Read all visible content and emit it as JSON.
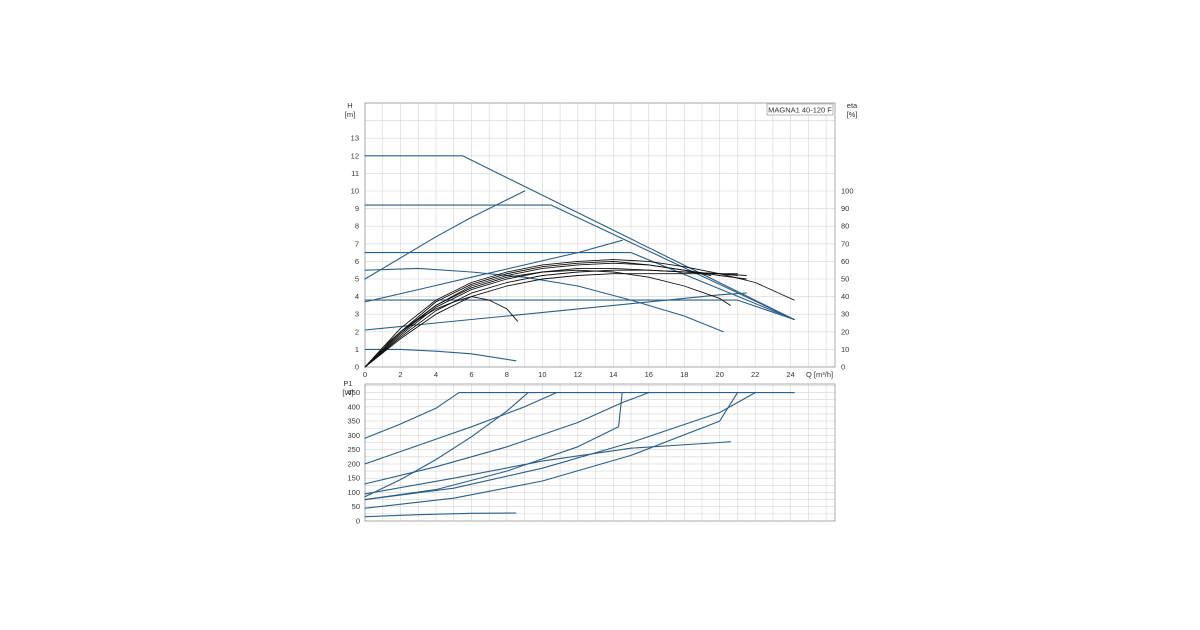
{
  "chart_data": [
    {
      "type": "line",
      "title": "",
      "model_label": "MAGNA1 40-120 F",
      "xlabel": "Q [m³/h]",
      "ylabel_left": [
        "H",
        "[m]"
      ],
      "ylabel_right": [
        "eta",
        "[%]"
      ],
      "xlim": [
        0,
        26.5
      ],
      "ylim": [
        0,
        15
      ],
      "xticks": [
        "0",
        "2",
        "4",
        "6",
        "8",
        "10",
        "12",
        "14",
        "16",
        "18",
        "20",
        "22",
        "24"
      ],
      "yticks": [
        "0",
        "1",
        "2",
        "3",
        "4",
        "5",
        "6",
        "7",
        "8",
        "9",
        "10",
        "11",
        "12",
        "13"
      ],
      "yticks_right": [
        "0",
        "10",
        "20",
        "30",
        "40",
        "50",
        "60",
        "70",
        "80",
        "90",
        "100"
      ],
      "grid": true,
      "head_series": [
        {
          "points": [
            [
              0,
              12
            ],
            [
              5.5,
              12
            ],
            [
              24.2,
              2.7
            ]
          ]
        },
        {
          "points": [
            [
              0,
              9.2
            ],
            [
              10.5,
              9.2
            ],
            [
              24.2,
              2.7
            ]
          ]
        },
        {
          "points": [
            [
              0,
              6.5
            ],
            [
              15,
              6.5
            ],
            [
              24.2,
              2.7
            ]
          ]
        },
        {
          "points": [
            [
              0,
              3.8
            ],
            [
              21,
              3.8
            ],
            [
              24.2,
              2.7
            ]
          ]
        },
        {
          "points": [
            [
              0,
              5.0
            ],
            [
              2,
              6.2
            ],
            [
              4,
              7.4
            ],
            [
              6,
              8.5
            ],
            [
              8,
              9.5
            ],
            [
              9,
              10.0
            ]
          ]
        },
        {
          "points": [
            [
              0,
              3.7
            ],
            [
              3,
              4.4
            ],
            [
              6,
              5.1
            ],
            [
              9,
              5.8
            ],
            [
              12,
              6.5
            ],
            [
              14.5,
              7.2
            ]
          ]
        },
        {
          "points": [
            [
              0,
              2.1
            ],
            [
              4,
              2.5
            ],
            [
              8,
              2.9
            ],
            [
              12,
              3.3
            ],
            [
              16,
              3.7
            ],
            [
              20,
              4.1
            ],
            [
              21.5,
              4.2
            ]
          ]
        },
        {
          "points": [
            [
              0,
              5.5
            ],
            [
              3,
              5.6
            ],
            [
              6,
              5.4
            ],
            [
              9,
              5.1
            ],
            [
              12,
              4.6
            ],
            [
              15,
              3.8
            ],
            [
              18,
              2.9
            ],
            [
              20.2,
              2.0
            ]
          ]
        },
        {
          "points": [
            [
              0,
              1.0
            ],
            [
              2,
              1.0
            ],
            [
              4,
              0.9
            ],
            [
              6,
              0.75
            ],
            [
              8.5,
              0.35
            ]
          ]
        }
      ],
      "efficiency_series": [
        {
          "points": [
            [
              0,
              0
            ],
            [
              1,
              11
            ],
            [
              2,
              20
            ],
            [
              3,
              27
            ],
            [
              4,
              33
            ],
            [
              5,
              37
            ],
            [
              6,
              40
            ],
            [
              7,
              38
            ],
            [
              8,
              33
            ],
            [
              8.6,
              26
            ]
          ]
        },
        {
          "points": [
            [
              0,
              0
            ],
            [
              2,
              20
            ],
            [
              4,
              35
            ],
            [
              6,
              45
            ],
            [
              8,
              51
            ],
            [
              10,
              54
            ],
            [
              12,
              55
            ],
            [
              14,
              54
            ],
            [
              16,
              51
            ],
            [
              18,
              46
            ],
            [
              20,
              39
            ],
            [
              20.6,
              35
            ]
          ]
        },
        {
          "points": [
            [
              0,
              0
            ],
            [
              2,
              22
            ],
            [
              4,
              38
            ],
            [
              6,
              48
            ],
            [
              8,
              54
            ],
            [
              10,
              58
            ],
            [
              12,
              60
            ],
            [
              14,
              61
            ],
            [
              16,
              60
            ],
            [
              18,
              57
            ],
            [
              20,
              53
            ],
            [
              22,
              48
            ],
            [
              24.2,
              38
            ]
          ]
        },
        {
          "points": [
            [
              0,
              0
            ],
            [
              2,
              20
            ],
            [
              4,
              37
            ],
            [
              6,
              47
            ],
            [
              8,
              53
            ],
            [
              10,
              57
            ],
            [
              12,
              59
            ],
            [
              14,
              60
            ],
            [
              16,
              58
            ],
            [
              18,
              55
            ],
            [
              20,
              52
            ],
            [
              21.5,
              50
            ]
          ]
        },
        {
          "points": [
            [
              0,
              0
            ],
            [
              2,
              18
            ],
            [
              4,
              34
            ],
            [
              6,
              44
            ],
            [
              8,
              50
            ],
            [
              10,
              54
            ],
            [
              12,
              56
            ],
            [
              14,
              56
            ],
            [
              16,
              55
            ],
            [
              18,
              54
            ],
            [
              20,
              53
            ],
            [
              21,
              52
            ]
          ]
        },
        {
          "points": [
            [
              0,
              0
            ],
            [
              2,
              17
            ],
            [
              4,
              32
            ],
            [
              6,
              42
            ],
            [
              8,
              48
            ],
            [
              10,
              52
            ],
            [
              12,
              54
            ],
            [
              14,
              55
            ],
            [
              16,
              55
            ],
            [
              18,
              54
            ],
            [
              20,
              53
            ],
            [
              21.5,
              52
            ]
          ]
        },
        {
          "points": [
            [
              0,
              0
            ],
            [
              2,
              16
            ],
            [
              4,
              30
            ],
            [
              6,
              40
            ],
            [
              8,
              46
            ],
            [
              10,
              50
            ],
            [
              12,
              52
            ],
            [
              14,
              53
            ],
            [
              16,
              53
            ],
            [
              18,
              53
            ],
            [
              20,
              53
            ],
            [
              21,
              53
            ]
          ]
        },
        {
          "points": [
            [
              0,
              0
            ],
            [
              2,
              19
            ],
            [
              4,
              35
            ],
            [
              6,
              46
            ],
            [
              8,
              52
            ],
            [
              10,
              56
            ],
            [
              12,
              58
            ],
            [
              14,
              59
            ],
            [
              16,
              58
            ],
            [
              18,
              55
            ],
            [
              19.5,
              52
            ]
          ]
        }
      ]
    },
    {
      "type": "line",
      "title": "",
      "xlabel": "",
      "ylabel_left": [
        "P1",
        "[W]"
      ],
      "xlim": [
        0,
        26.5
      ],
      "ylim": [
        0,
        480
      ],
      "yticks": [
        "0",
        "50",
        "100",
        "150",
        "200",
        "250",
        "300",
        "350",
        "400",
        "450"
      ],
      "grid": true,
      "power_series": [
        {
          "points": [
            [
              0,
              290
            ],
            [
              2,
              340
            ],
            [
              4,
              395
            ],
            [
              5.3,
              450
            ],
            [
              24.2,
              450
            ]
          ]
        },
        {
          "points": [
            [
              0,
              200
            ],
            [
              3,
              265
            ],
            [
              6,
              330
            ],
            [
              9,
              400
            ],
            [
              10.8,
              450
            ]
          ]
        },
        {
          "points": [
            [
              0,
              85
            ],
            [
              2,
              145
            ],
            [
              4,
              215
            ],
            [
              6,
              295
            ],
            [
              8,
              385
            ],
            [
              9.2,
              450
            ]
          ]
        },
        {
          "points": [
            [
              0,
              130
            ],
            [
              4,
              190
            ],
            [
              8,
              260
            ],
            [
              12,
              345
            ],
            [
              14.5,
              415
            ],
            [
              16,
              450
            ]
          ]
        },
        {
          "points": [
            [
              0,
              75
            ],
            [
              4,
              110
            ],
            [
              8,
              175
            ],
            [
              12,
              260
            ],
            [
              14.3,
              330
            ],
            [
              14.5,
              450
            ]
          ]
        },
        {
          "points": [
            [
              0,
              75
            ],
            [
              5,
              115
            ],
            [
              10,
              185
            ],
            [
              15,
              275
            ],
            [
              20,
              380
            ],
            [
              22,
              450
            ]
          ]
        },
        {
          "points": [
            [
              0,
              45
            ],
            [
              5,
              80
            ],
            [
              10,
              140
            ],
            [
              15,
              230
            ],
            [
              20,
              350
            ],
            [
              21,
              450
            ]
          ]
        },
        {
          "points": [
            [
              0,
              95
            ],
            [
              5,
              150
            ],
            [
              10,
              210
            ],
            [
              15,
              255
            ],
            [
              20,
              275
            ],
            [
              20.6,
              278
            ]
          ]
        },
        {
          "points": [
            [
              0,
              15
            ],
            [
              3,
              22
            ],
            [
              6,
              27
            ],
            [
              8.5,
              28
            ]
          ]
        }
      ]
    }
  ],
  "colors": {
    "head_curve": "#2a5f8a",
    "power_curve": "#2a5f8a",
    "efficiency_curve": "#111111",
    "grid": "#d4d4d4"
  }
}
